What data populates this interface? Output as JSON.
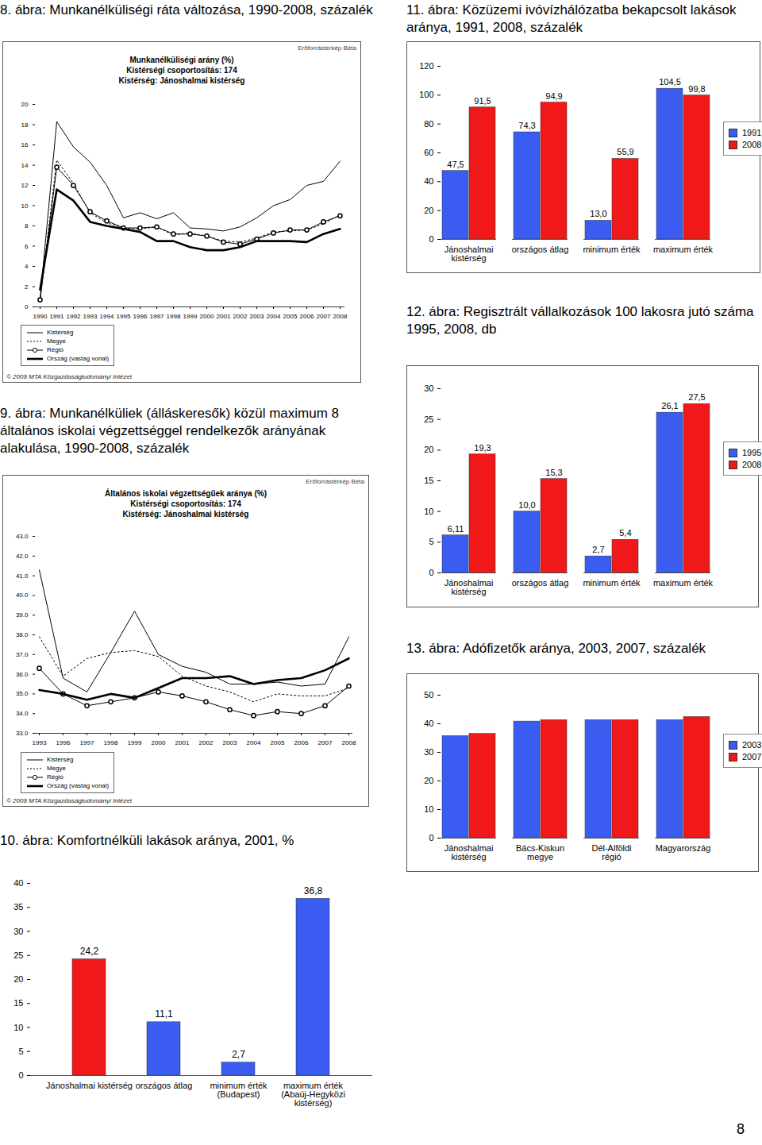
{
  "chart_data": [
    {
      "type": "line",
      "title": "8. ábra: Munkanélküliségi ráta változása, 1990-2008, százalék",
      "subtitle": [
        "Munkanélküliségi arány (%)",
        "Kistérségi csoportosítás: 174",
        "Kistérség: Jánoshalmai kistérség"
      ],
      "annotations": [
        "Erőforrástérkép Béta",
        "© 2009 MTA Közgazdaságtudományi Intézet"
      ],
      "categories": [
        "1990",
        "1991",
        "1992",
        "1993",
        "1994",
        "1995",
        "1996",
        "1997",
        "1998",
        "1999",
        "2000",
        "2001",
        "2002",
        "2003",
        "2004",
        "2005",
        "2006",
        "2007",
        "2008"
      ],
      "series": [
        {
          "name": "Kistérség",
          "color": "#000000",
          "line_style": "solid",
          "values": [
            0.8,
            18.3,
            15.8,
            14.3,
            12.0,
            8.8,
            9.3,
            8.7,
            9.3,
            7.8,
            7.7,
            7.5,
            7.9,
            8.8,
            10.0,
            10.6,
            12.0,
            12.4,
            14.4
          ]
        },
        {
          "name": "Megye",
          "color": "#000000",
          "line_style": "dotted",
          "values": [
            0.6,
            14.5,
            12.2,
            9.3,
            8.3,
            7.8,
            7.7,
            7.9,
            7.1,
            7.3,
            7.0,
            6.5,
            6.4,
            6.8,
            7.4,
            7.5,
            7.6,
            8.2,
            9.1
          ]
        },
        {
          "name": "Régió",
          "color": "#000000",
          "line_style": "solid",
          "marker": "circle",
          "values": [
            0.7,
            13.8,
            12.0,
            9.4,
            8.5,
            7.8,
            7.8,
            7.9,
            7.2,
            7.2,
            7.0,
            6.4,
            6.2,
            6.7,
            7.3,
            7.6,
            7.6,
            8.4,
            9.0
          ]
        },
        {
          "name": "Ország (vastag vonal)",
          "color": "#000000",
          "line_style": "thick",
          "values": [
            1.7,
            11.6,
            10.5,
            8.4,
            8.0,
            7.7,
            7.4,
            6.5,
            6.5,
            5.9,
            5.6,
            5.6,
            5.9,
            6.5,
            6.5,
            6.5,
            6.4,
            7.2,
            7.7
          ]
        }
      ],
      "ylim": [
        0,
        20
      ],
      "yticks": [
        0,
        2,
        4,
        6,
        8,
        10,
        12,
        14,
        16,
        18,
        20
      ],
      "legend": "lower left"
    },
    {
      "type": "bar",
      "title": "11. ábra: Közüzemi ivóvízhálózatba bekapcsolt lakások aránya, 1991, 2008, százalék",
      "categories": [
        "Jánoshalmai kistérség",
        "országos átlag",
        "minimum érték",
        "maximum érték"
      ],
      "series": [
        {
          "name": "1991",
          "color": "#3a5cf0",
          "values": [
            47.5,
            74.3,
            13.0,
            104.5
          ],
          "value_labels": [
            "47,5",
            "74,3",
            "13,0",
            "104,5"
          ]
        },
        {
          "name": "2008",
          "color": "#f01818",
          "values": [
            91.5,
            94.9,
            55.9,
            99.8
          ],
          "value_labels": [
            "91,5",
            "94,9",
            "55,9",
            "99,8"
          ]
        }
      ],
      "ylim": [
        0,
        120
      ],
      "yticks": [
        0,
        20,
        40,
        60,
        80,
        100,
        120
      ],
      "data_labels": true,
      "legend": "right"
    },
    {
      "type": "bar",
      "title": "12. ábra: Regisztrált vállalkozások 100 lakosra jutó száma 1995, 2008, db",
      "categories": [
        "Jánoshalmai kistérség",
        "országos átlag",
        "minimum érték",
        "maximum érték"
      ],
      "series": [
        {
          "name": "1995",
          "color": "#3a5cf0",
          "values": [
            6.11,
            10.0,
            2.7,
            26.1
          ],
          "value_labels": [
            "6,11",
            "10,0",
            "2,7",
            "26,1"
          ]
        },
        {
          "name": "2008",
          "color": "#f01818",
          "values": [
            19.3,
            15.3,
            5.4,
            27.5
          ],
          "value_labels": [
            "19,3",
            "15,3",
            "5,4",
            "27,5"
          ]
        }
      ],
      "ylim": [
        0,
        30
      ],
      "yticks": [
        0,
        5,
        10,
        15,
        20,
        25,
        30
      ],
      "data_labels": true,
      "legend": "right"
    },
    {
      "type": "line",
      "title": "9. ábra: Munkanélküliek (álláskeresők) közül maximum 8 általános iskolai végzettséggel rendelkezők arányának alakulása, 1990-2008, százalék",
      "subtitle": [
        "Általános iskolai végzettségűek aránya (%)",
        "Kistérségi csoportosítás: 174",
        "Kistérség: Jánoshalmai kistérség"
      ],
      "annotations": [
        "Erőforrástérkép Béta",
        "© 2009 MTA Közgazdaságtudományi Intézet"
      ],
      "categories": [
        "1993",
        "1996",
        "1997",
        "1998",
        "1999",
        "2000",
        "2001",
        "2002",
        "2003",
        "2004",
        "2005",
        "2006",
        "2007",
        "2008"
      ],
      "series": [
        {
          "name": "Kistérség",
          "color": "#000000",
          "line_style": "solid",
          "values": [
            41.3,
            35.8,
            35.1,
            37.1,
            39.2,
            37.0,
            36.4,
            36.1,
            35.5,
            35.5,
            35.6,
            35.4,
            35.5,
            37.9
          ]
        },
        {
          "name": "Megye",
          "color": "#000000",
          "line_style": "dotted",
          "values": [
            37.9,
            35.9,
            36.8,
            37.1,
            37.2,
            36.9,
            35.9,
            35.4,
            35.1,
            34.6,
            35.0,
            34.9,
            34.9,
            35.3
          ]
        },
        {
          "name": "Régió",
          "color": "#000000",
          "line_style": "solid",
          "marker": "circle",
          "values": [
            36.3,
            35.0,
            34.4,
            34.6,
            34.8,
            35.1,
            34.9,
            34.6,
            34.2,
            33.9,
            34.1,
            34.0,
            34.4,
            35.4
          ]
        },
        {
          "name": "Ország (vastag vonal)",
          "color": "#000000",
          "line_style": "thick",
          "values": [
            35.2,
            35.0,
            34.7,
            35.0,
            34.8,
            35.3,
            35.8,
            35.8,
            35.9,
            35.5,
            35.7,
            35.8,
            36.2,
            36.8
          ]
        }
      ],
      "ylim": [
        33,
        43
      ],
      "yticks": [
        {
          "value": 33,
          "label": "33.0"
        },
        {
          "value": 34,
          "label": "34.0"
        },
        {
          "value": 35,
          "label": "35.0"
        },
        {
          "value": 36,
          "label": "36.0"
        },
        {
          "value": 37,
          "label": "37.0"
        },
        {
          "value": 38,
          "label": "38.0"
        },
        {
          "value": 39,
          "label": "39.0"
        },
        {
          "value": 40,
          "label": "40.0"
        },
        {
          "value": 41,
          "label": "41.0"
        },
        {
          "value": 42,
          "label": "42.0"
        },
        {
          "value": 43,
          "label": "43.0"
        }
      ],
      "legend": "lower left"
    },
    {
      "type": "bar",
      "title": "13. ábra: Adófizetők aránya, 2003, 2007, százalék",
      "categories": [
        "Jánoshalmai kistérség",
        "Bács-Kiskun megye",
        "Dél-Alföldi régió",
        "Magyarország"
      ],
      "series": [
        {
          "name": "2003",
          "color": "#3a5cf0",
          "values": [
            35.7,
            40.8,
            41.3,
            41.3
          ]
        },
        {
          "name": "2007",
          "color": "#f01818",
          "values": [
            36.5,
            41.3,
            41.3,
            42.4
          ]
        }
      ],
      "ylim": [
        0,
        50
      ],
      "yticks": [
        0,
        10,
        20,
        30,
        40,
        50
      ],
      "legend": "right"
    },
    {
      "type": "bar",
      "title": "10. ábra: Komfortnélküli lakások aránya, 2001, %",
      "categories": [
        "Jánoshalmai kistérség",
        "országos átlag",
        "minimum érték (Budapest)",
        "maximum érték (Abaúj-Hegyközi kistérség)"
      ],
      "values": [
        24.2,
        11.1,
        2.7,
        36.8
      ],
      "value_labels": [
        "24,2",
        "11,1",
        "2,7",
        "36,8"
      ],
      "colors": [
        "#f01818",
        "#3a5cf0",
        "#3a5cf0",
        "#3a5cf0"
      ],
      "ylim": [
        0,
        40
      ],
      "yticks": [
        0,
        5,
        10,
        15,
        20,
        25,
        30,
        35,
        40
      ],
      "data_labels": true
    }
  ],
  "page_number": "8"
}
